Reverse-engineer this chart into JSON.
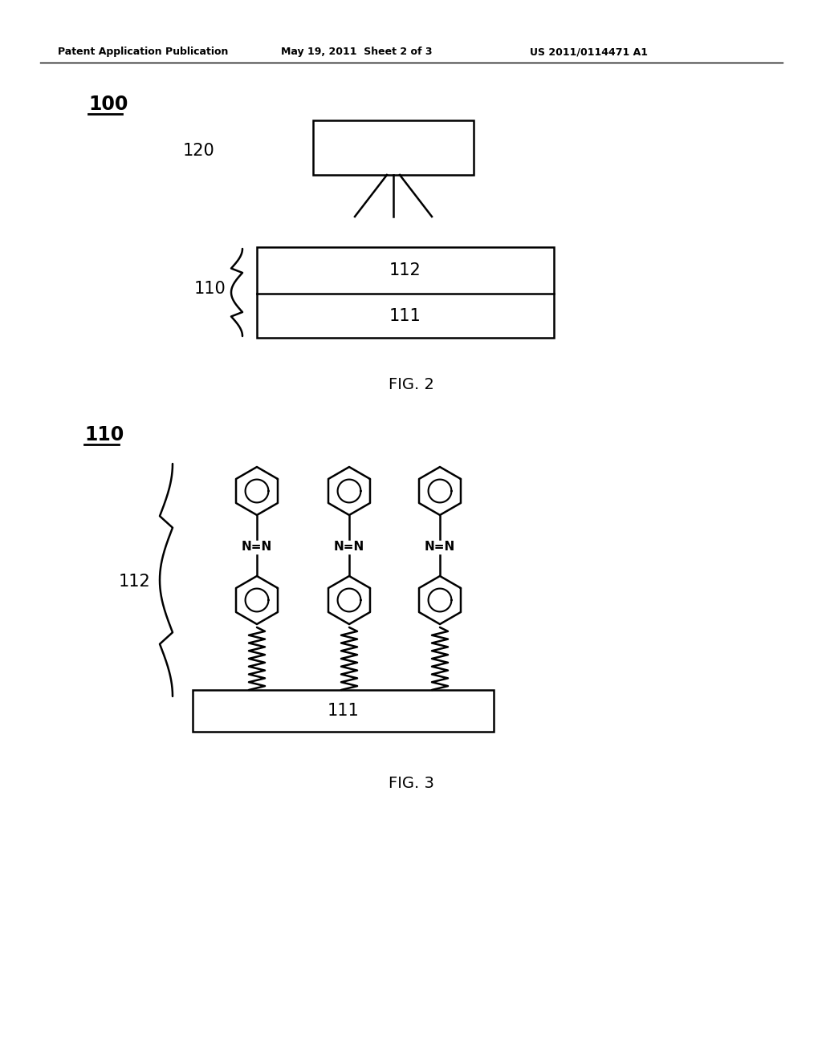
{
  "header_left": "Patent Application Publication",
  "header_mid": "May 19, 2011  Sheet 2 of 3",
  "header_right": "US 2011/0114471 A1",
  "fig2_label": "FIG. 2",
  "fig3_label": "FIG. 3",
  "label_100": "100",
  "label_120": "120",
  "label_110_fig2": "110",
  "label_111_fig2": "111",
  "label_112_fig2": "112",
  "label_110_fig3": "110",
  "label_112_fig3": "112",
  "label_111_fig3": "111",
  "bg_color": "#ffffff",
  "line_color": "#000000"
}
